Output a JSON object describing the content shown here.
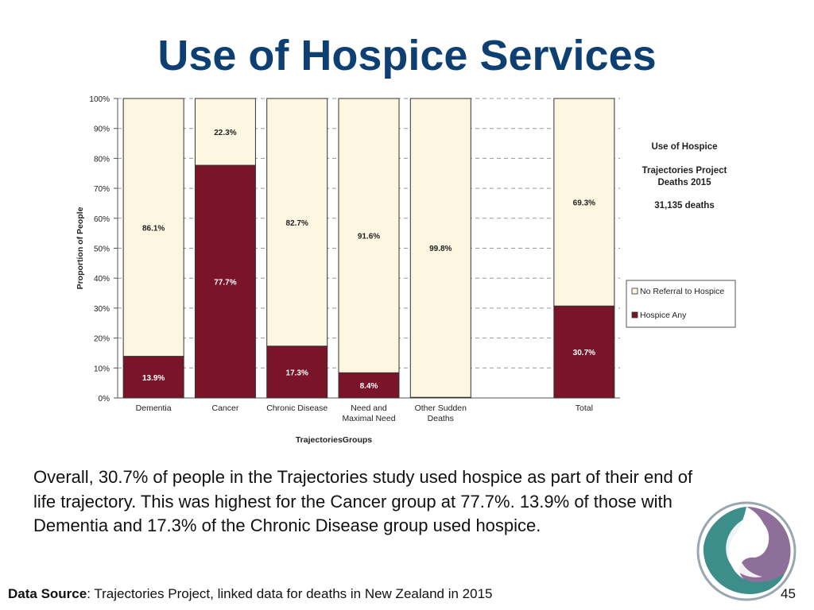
{
  "slide": {
    "title": "Use of Hospice Services",
    "summary": "Overall, 30.7% of people in the Trajectories study used hospice as part of their end of life trajectory. This was highest for the Cancer group at 77.7%. 13.9% of those with Dementia and 17.3% of the Chronic Disease group used hospice.",
    "source_label": "Data Source",
    "source_text": ": Trajectories Project, linked data for deaths in New Zealand in 2015",
    "page_number": "45",
    "logo_icon": "swirl-logo-icon"
  },
  "chart_data": {
    "type": "bar",
    "stacked": true,
    "percent": true,
    "xlabel": "TrajectoriesGroups",
    "ylabel": "Proportion of People",
    "ylim": [
      0,
      100
    ],
    "yticks": [
      "0%",
      "10%",
      "20%",
      "30%",
      "40%",
      "50%",
      "60%",
      "70%",
      "80%",
      "90%",
      "100%"
    ],
    "grid": "horizontal-dashed",
    "categories": [
      [
        "Dementia"
      ],
      [
        "Cancer"
      ],
      [
        "Chronic Disease"
      ],
      [
        "Need and",
        "Maximal Need"
      ],
      [
        "Other Sudden",
        "Deaths"
      ],
      [
        ""
      ],
      [
        "Total"
      ]
    ],
    "series": [
      {
        "name": "Hospice Any",
        "color": "#7a1428",
        "label_color": "#ffffff",
        "values": [
          13.9,
          77.7,
          17.3,
          8.4,
          0.2,
          null,
          30.7
        ],
        "labels": [
          "13.9%",
          "77.7%",
          "17.3%",
          "8.4%",
          "",
          "",
          "30.7%"
        ]
      },
      {
        "name": "No Referral to Hospice",
        "color": "#fdf6e0",
        "label_color": "#222222",
        "values": [
          86.1,
          22.3,
          82.7,
          91.6,
          99.8,
          null,
          69.3
        ],
        "labels": [
          "86.1%",
          "22.3%",
          "82.7%",
          "91.6%",
          "99.8%",
          "",
          "69.3%"
        ]
      }
    ],
    "legend": {
      "position": "right",
      "order": [
        "No Referral to Hospice",
        "Hospice Any"
      ]
    },
    "annotation": {
      "title": "Use of Hospice",
      "subtitle_lines": [
        "Trajectories Project",
        "Deaths 2015"
      ],
      "count": "31,135 deaths"
    }
  }
}
